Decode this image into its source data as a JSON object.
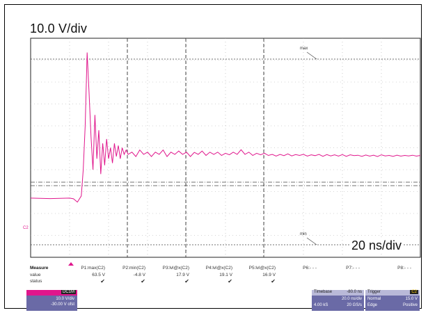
{
  "annotations": {
    "volts_per_div": "10.0 V/div",
    "time_per_div": "20 ns/div"
  },
  "markers": {
    "max_label": "max",
    "min_label": "min",
    "channel_label": "C2"
  },
  "measure": {
    "header": "Measure",
    "row_value": "value",
    "row_status": "status",
    "params": [
      {
        "name": "P1:max(C2)",
        "value": "63.5 V",
        "status": "✔"
      },
      {
        "name": "P2:min(C2)",
        "value": "-4.8 V",
        "status": "✔"
      },
      {
        "name": "P3:lvl@x(C2)",
        "value": "17.9 V",
        "status": "✔"
      },
      {
        "name": "P4:lvl@x(C2)",
        "value": "19.1 V",
        "status": "✔"
      },
      {
        "name": "P5:lvl@x(C2)",
        "value": "16.9 V",
        "status": "✔"
      },
      {
        "name": "P6:- - -",
        "value": "",
        "status": ""
      },
      {
        "name": "P7:- - -",
        "value": "",
        "status": ""
      },
      {
        "name": "P8:- - -",
        "value": "",
        "status": ""
      }
    ]
  },
  "channel_box": {
    "channel": "C2",
    "tag": "DC1M",
    "scale": "10.0 V/div",
    "offset": "-30.00 V ofst"
  },
  "timebase": {
    "title": "Timebase",
    "delay": "-80.0 ns",
    "scale": "20.0 ns/div",
    "samples": "4.00 kS",
    "rate": "20 GS/s"
  },
  "trigger": {
    "title": "Trigger",
    "channel": "C2",
    "mode": "Normal",
    "level": "15.0 V",
    "type": "Edge",
    "slope": "Positive"
  },
  "colors": {
    "trace": "#e0168c",
    "grid": "#000000",
    "panel": "#6a6aa6"
  },
  "chart_data": {
    "type": "line",
    "ylim": [
      -30,
      70
    ],
    "xlim": [
      -180,
      20
    ],
    "series": [
      {
        "x": [
          -180,
          -170,
          -160,
          -158,
          -156,
          -154,
          -153,
          -152,
          -151,
          -150,
          -149,
          -148,
          -147,
          -146,
          -145,
          -144,
          -143,
          -142,
          -141,
          -140,
          -139,
          -138,
          -137,
          -136,
          -135,
          -134,
          -133,
          -132,
          -131,
          -130,
          -128,
          -126,
          -124,
          -122,
          -120,
          -118,
          -116,
          -114,
          -112,
          -110,
          -108,
          -106,
          -104,
          -102,
          -100,
          -98,
          -96,
          -94,
          -92,
          -90,
          -88,
          -86,
          -84,
          -82,
          -80,
          -78,
          -76,
          -74,
          -72,
          -70,
          -68,
          -66,
          -64,
          -62,
          -60,
          -58,
          -56,
          -54,
          -52,
          -50,
          -48,
          -46,
          -44,
          -42,
          -40,
          -38,
          -36,
          -34,
          -32,
          -30,
          -28,
          -26,
          -24,
          -22,
          -20,
          -18,
          -16,
          -14,
          -12,
          -10,
          -8,
          -6,
          -4,
          -2,
          0,
          2,
          4,
          6,
          8,
          10,
          12,
          14,
          16,
          18,
          20
        ],
        "y": [
          -3,
          -3.2,
          -3,
          -3.3,
          -4.8,
          -2,
          10,
          30,
          63.5,
          45,
          25,
          10,
          35,
          15,
          28,
          8,
          22,
          12,
          24,
          15,
          20,
          13,
          22,
          16,
          21,
          15,
          20,
          17,
          19,
          17,
          18,
          16,
          19,
          17,
          18,
          16,
          18,
          17,
          19,
          16,
          18,
          17,
          18.5,
          17,
          18,
          16,
          17.9,
          17,
          18.5,
          16.5,
          18,
          17,
          18,
          16.5,
          17.5,
          16.8,
          18,
          17,
          19.1,
          17,
          18,
          16.5,
          17.5,
          16.8,
          17.5,
          16.5,
          17,
          16.2,
          17,
          16.4,
          17.2,
          16.3,
          16.9,
          16.5,
          17,
          16.2,
          16.8,
          16.4,
          17,
          16.1,
          16.9,
          16.3,
          16.8,
          16.2,
          16.9,
          16.1,
          16.8,
          16.4,
          16.6,
          16.1,
          16.7,
          16.2,
          16.6,
          16,
          16.8,
          16.3,
          16.5,
          16.1,
          16.6,
          16.2,
          16.5,
          16.3,
          16.6,
          16.2,
          16.5
        ]
      }
    ]
  }
}
